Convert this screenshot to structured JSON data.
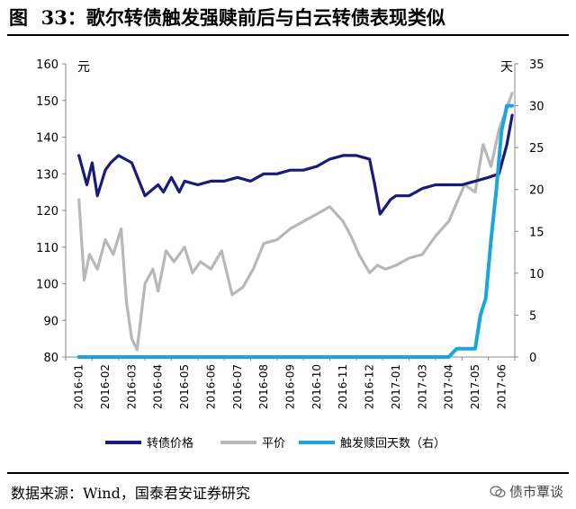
{
  "figure": {
    "title": "图  33：歌尔转债触发强赎前后与白云转债表现类似",
    "source": "数据来源：Wind，国泰君安证券研究",
    "watermark": "债市覃谈"
  },
  "chart_data": {
    "type": "line",
    "left_unit": "元",
    "right_unit": "天",
    "left_axis": {
      "ylim": [
        80,
        160
      ],
      "ticks": [
        "80",
        "90",
        "100",
        "110",
        "120",
        "130",
        "140",
        "150",
        "160"
      ]
    },
    "right_axis": {
      "ylim": [
        0,
        35
      ],
      "ticks": [
        "0",
        "5",
        "10",
        "15",
        "20",
        "25",
        "30",
        "35"
      ]
    },
    "x_categories": [
      "2016-01",
      "2016-02",
      "2016-03",
      "2016-04",
      "2016-05",
      "2016-06",
      "2016-07",
      "2016-08",
      "2016-09",
      "2016-10",
      "2016-11",
      "2016-12",
      "2017-01",
      "2017-03",
      "2017-04",
      "2017-05",
      "2017-06"
    ],
    "series": [
      {
        "name": "转债价格",
        "axis": "left",
        "color": "#1a1a7a",
        "x": [
          0,
          0.3,
          0.5,
          0.7,
          1.0,
          1.2,
          1.5,
          2.0,
          2.5,
          3.0,
          3.2,
          3.5,
          3.8,
          4.0,
          4.5,
          5.0,
          5.5,
          6.0,
          6.5,
          7.0,
          7.5,
          8.0,
          8.5,
          9.0,
          9.5,
          10.0,
          10.5,
          11.0,
          11.2,
          11.4,
          11.6,
          11.8,
          12.0,
          12.5,
          13.0,
          13.5,
          14.0,
          14.5,
          15.0,
          15.5,
          15.9,
          16.2,
          16.4
        ],
        "values": [
          135,
          127,
          133,
          124,
          131,
          133,
          135,
          133,
          124,
          127,
          125,
          129,
          125,
          128,
          127,
          128,
          128,
          129,
          128,
          130,
          130,
          131,
          131,
          132,
          134,
          135,
          135,
          134,
          127,
          119,
          121,
          123,
          124,
          124,
          126,
          127,
          127,
          127,
          128,
          129,
          130,
          138,
          146
        ]
      },
      {
        "name": "平价",
        "axis": "left",
        "color": "#b8b8b8",
        "x": [
          0,
          0.2,
          0.4,
          0.7,
          1.0,
          1.3,
          1.6,
          1.8,
          2.0,
          2.2,
          2.5,
          2.8,
          3.0,
          3.3,
          3.6,
          4.0,
          4.3,
          4.6,
          5.0,
          5.4,
          5.8,
          6.2,
          6.6,
          7.0,
          7.5,
          8.0,
          8.5,
          9.0,
          9.5,
          10.0,
          10.3,
          10.6,
          11.0,
          11.3,
          11.6,
          12.0,
          12.5,
          13.0,
          13.5,
          14.0,
          14.3,
          14.6,
          15.0,
          15.3,
          15.6,
          15.9,
          16.2,
          16.4
        ],
        "values": [
          123,
          101,
          108,
          104,
          112,
          108,
          115,
          95,
          85,
          82,
          100,
          104,
          98,
          109,
          106,
          110,
          103,
          106,
          104,
          109,
          97,
          99,
          104,
          111,
          112,
          115,
          117,
          119,
          121,
          117,
          113,
          108,
          103,
          105,
          104,
          105,
          107,
          108,
          113,
          117,
          122,
          127,
          125,
          138,
          132,
          142,
          148,
          152
        ]
      },
      {
        "name": "触发赎回天数（右）",
        "axis": "right",
        "color": "#1aa5db",
        "x": [
          0,
          14.0,
          14.3,
          14.6,
          14.9,
          15.0,
          15.2,
          15.4,
          15.6,
          15.8,
          16.0,
          16.2,
          16.4
        ],
        "values": [
          0,
          0,
          1,
          1,
          1,
          1,
          5,
          7,
          14,
          20,
          27,
          30,
          30
        ]
      }
    ]
  }
}
